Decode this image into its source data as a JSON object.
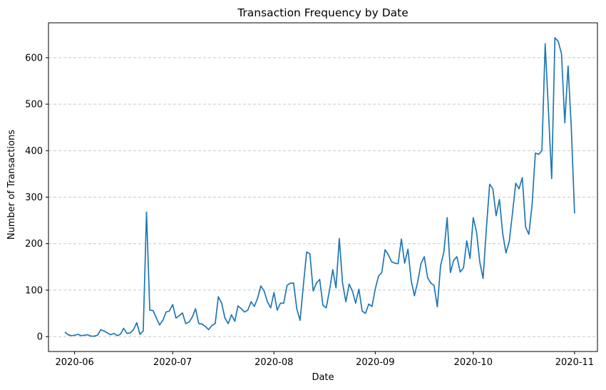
{
  "chart_data": {
    "type": "line",
    "title": "Transaction Frequency by Date",
    "xlabel": "Date",
    "ylabel": "Number of Transactions",
    "grid": "y-dashed",
    "legend": "none",
    "line_color": "#1f77b4",
    "x_ticks": [
      "2020-06",
      "2020-07",
      "2020-08",
      "2020-09",
      "2020-10",
      "2020-11"
    ],
    "x_tick_dates": [
      "2020-06-01",
      "2020-07-01",
      "2020-08-01",
      "2020-09-01",
      "2020-10-01",
      "2020-11-01"
    ],
    "xlim": [
      "2020-05-24",
      "2020-11-08"
    ],
    "y_ticks": [
      0,
      100,
      200,
      300,
      400,
      500,
      600
    ],
    "ylim": [
      -32,
      675
    ],
    "series": [
      {
        "x": [
          "2020-05-29",
          "2020-05-30",
          "2020-05-31",
          "2020-06-01",
          "2020-06-02",
          "2020-06-03",
          "2020-06-04",
          "2020-06-05",
          "2020-06-06",
          "2020-06-07",
          "2020-06-08",
          "2020-06-09",
          "2020-06-10",
          "2020-06-11",
          "2020-06-12",
          "2020-06-13",
          "2020-06-14",
          "2020-06-15",
          "2020-06-16",
          "2020-06-17",
          "2020-06-18",
          "2020-06-19",
          "2020-06-20",
          "2020-06-21",
          "2020-06-22",
          "2020-06-23",
          "2020-06-24",
          "2020-06-25",
          "2020-06-26",
          "2020-06-27",
          "2020-06-28",
          "2020-06-29",
          "2020-06-30",
          "2020-07-01",
          "2020-07-02",
          "2020-07-03",
          "2020-07-04",
          "2020-07-05",
          "2020-07-06",
          "2020-07-07",
          "2020-07-08",
          "2020-07-09",
          "2020-07-10",
          "2020-07-11",
          "2020-07-12",
          "2020-07-13",
          "2020-07-14",
          "2020-07-15",
          "2020-07-16",
          "2020-07-17",
          "2020-07-18",
          "2020-07-19",
          "2020-07-20",
          "2020-07-21",
          "2020-07-22",
          "2020-07-23",
          "2020-07-24",
          "2020-07-25",
          "2020-07-26",
          "2020-07-27",
          "2020-07-28",
          "2020-07-29",
          "2020-07-30",
          "2020-07-31",
          "2020-08-01",
          "2020-08-02",
          "2020-08-03",
          "2020-08-04",
          "2020-08-05",
          "2020-08-06",
          "2020-08-07",
          "2020-08-08",
          "2020-08-09",
          "2020-08-10",
          "2020-08-11",
          "2020-08-12",
          "2020-08-13",
          "2020-08-14",
          "2020-08-15",
          "2020-08-16",
          "2020-08-17",
          "2020-08-18",
          "2020-08-19",
          "2020-08-20",
          "2020-08-21",
          "2020-08-22",
          "2020-08-23",
          "2020-08-24",
          "2020-08-25",
          "2020-08-26",
          "2020-08-27",
          "2020-08-28",
          "2020-08-29",
          "2020-08-30",
          "2020-08-31",
          "2020-09-01",
          "2020-09-02",
          "2020-09-03",
          "2020-09-04",
          "2020-09-05",
          "2020-09-06",
          "2020-09-07",
          "2020-09-08",
          "2020-09-09",
          "2020-09-10",
          "2020-09-11",
          "2020-09-12",
          "2020-09-13",
          "2020-09-14",
          "2020-09-15",
          "2020-09-16",
          "2020-09-17",
          "2020-09-18",
          "2020-09-19",
          "2020-09-20",
          "2020-09-21",
          "2020-09-22",
          "2020-09-23",
          "2020-09-24",
          "2020-09-25",
          "2020-09-26",
          "2020-09-27",
          "2020-09-28",
          "2020-09-29",
          "2020-09-30",
          "2020-10-01",
          "2020-10-02",
          "2020-10-03",
          "2020-10-04",
          "2020-10-05",
          "2020-10-06",
          "2020-10-07",
          "2020-10-08",
          "2020-10-09",
          "2020-10-10",
          "2020-10-11",
          "2020-10-12",
          "2020-10-13",
          "2020-10-14",
          "2020-10-15",
          "2020-10-16",
          "2020-10-17",
          "2020-10-18",
          "2020-10-19",
          "2020-10-20",
          "2020-10-21",
          "2020-10-22",
          "2020-10-23",
          "2020-10-24",
          "2020-10-25",
          "2020-10-26",
          "2020-10-27",
          "2020-10-28",
          "2020-10-29",
          "2020-10-30",
          "2020-10-31",
          "2020-11-01"
        ],
        "y": [
          10,
          4,
          2,
          3,
          5,
          2,
          3,
          4,
          1,
          1,
          3,
          15,
          12,
          8,
          4,
          7,
          2,
          5,
          18,
          7,
          8,
          15,
          30,
          5,
          12,
          268,
          57,
          56,
          40,
          25,
          35,
          53,
          55,
          69,
          40,
          45,
          51,
          28,
          31,
          42,
          60,
          28,
          27,
          22,
          15,
          24,
          28,
          86,
          72,
          40,
          28,
          47,
          33,
          66,
          60,
          53,
          57,
          75,
          65,
          83,
          109,
          98,
          75,
          62,
          95,
          57,
          72,
          72,
          110,
          115,
          115,
          60,
          35,
          110,
          182,
          178,
          98,
          115,
          123,
          67,
          62,
          100,
          144,
          105,
          211,
          115,
          75,
          113,
          98,
          72,
          102,
          55,
          50,
          70,
          65,
          102,
          130,
          138,
          187,
          176,
          161,
          158,
          157,
          210,
          158,
          188,
          120,
          88,
          118,
          157,
          172,
          127,
          115,
          110,
          64,
          153,
          182,
          256,
          138,
          164,
          172,
          139,
          148,
          206,
          168,
          256,
          225,
          160,
          125,
          232,
          328,
          318,
          260,
          295,
          222,
          180,
          205,
          265,
          330,
          318,
          342,
          236,
          220,
          283,
          395,
          392,
          400,
          630,
          485,
          340,
          643,
          635,
          608,
          460,
          582,
          450,
          265
        ]
      }
    ]
  }
}
